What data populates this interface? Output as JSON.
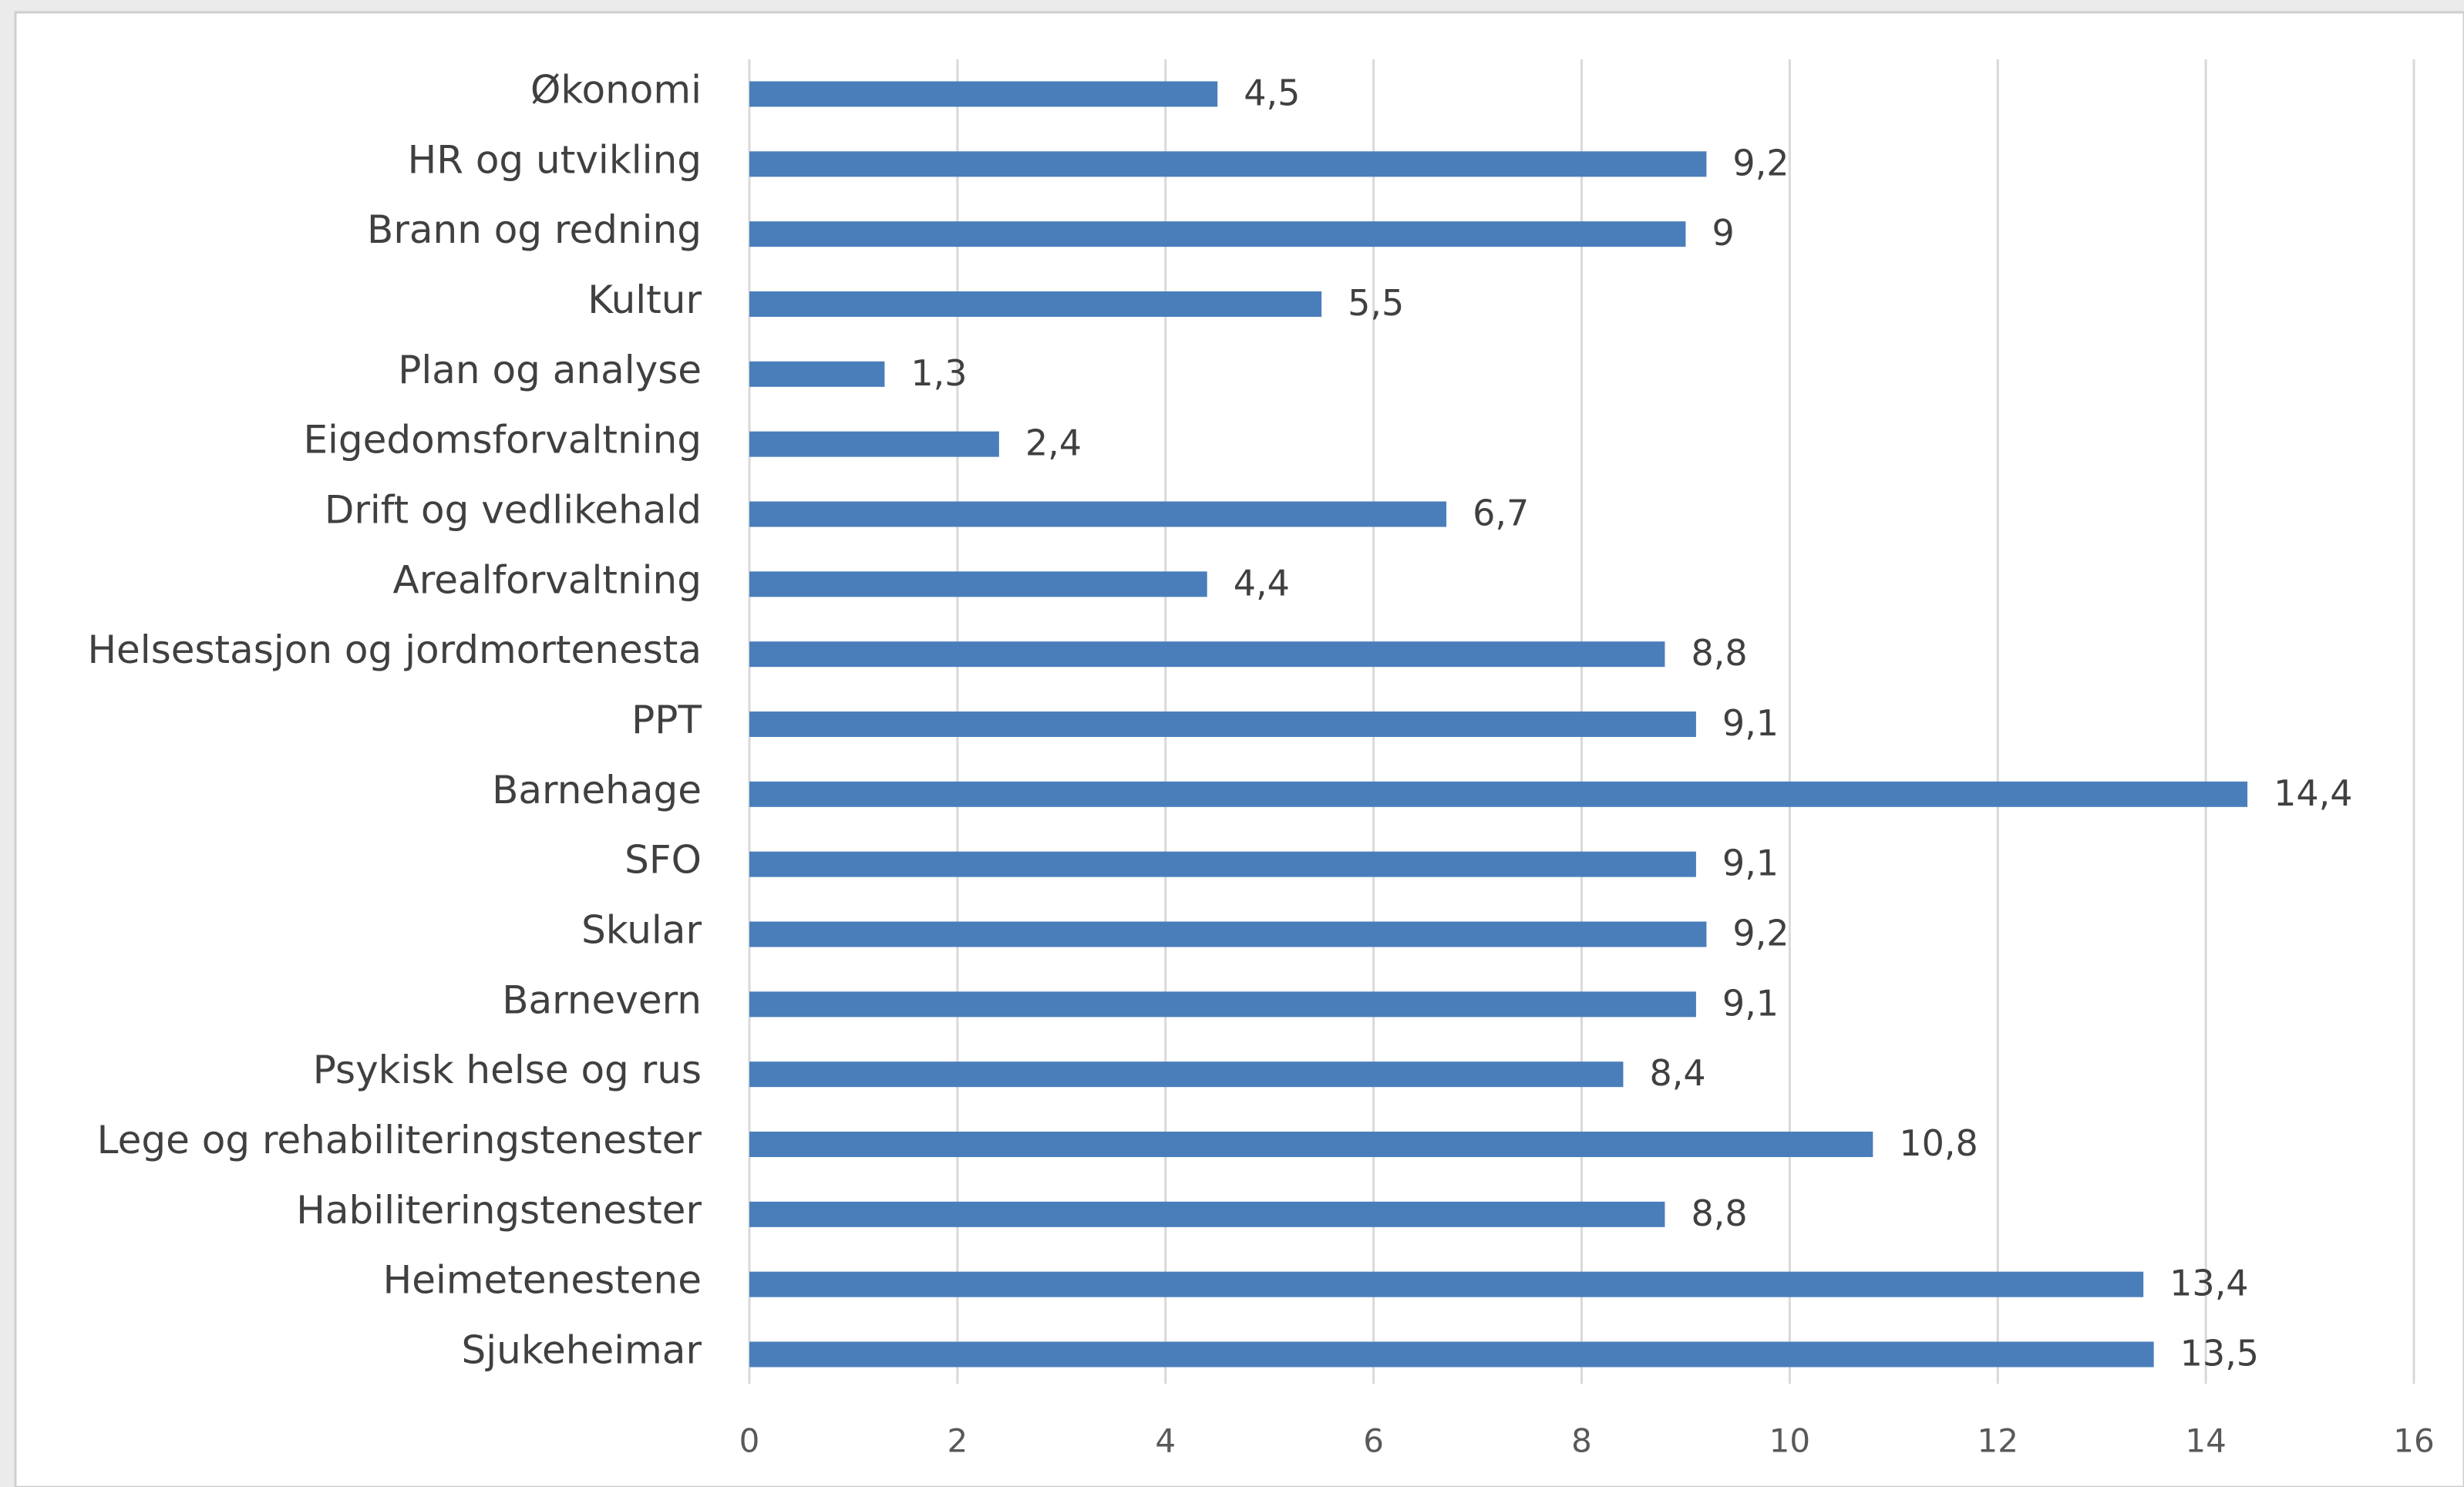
{
  "chart_data": {
    "type": "bar",
    "orientation": "horizontal",
    "categories": [
      "Økonomi",
      "HR og utvikling",
      "Brann og redning",
      "Kultur",
      "Plan og analyse",
      "Eigedomsforvaltning",
      "Drift og vedlikehald",
      "Arealforvaltning",
      "Helsestasjon og jordmortenesta",
      "PPT",
      "Barnehage",
      "SFO",
      "Skular",
      "Barnevern",
      "Psykisk helse og rus",
      "Lege og rehabiliteringstenester",
      "Habiliteringstenester",
      "Heimetenestene",
      "Sjukeheimar"
    ],
    "values": [
      4.5,
      9.2,
      9,
      5.5,
      1.3,
      2.4,
      6.7,
      4.4,
      8.8,
      9.1,
      14.4,
      9.1,
      9.2,
      9.1,
      8.4,
      10.8,
      8.8,
      13.4,
      13.5
    ],
    "value_labels": [
      "4,5",
      "9,2",
      "9",
      "5,5",
      "1,3",
      "2,4",
      "6,7",
      "4,4",
      "8,8",
      "9,1",
      "14,4",
      "9,1",
      "9,2",
      "9,1",
      "8,4",
      "10,8",
      "8,8",
      "13,4",
      "13,5"
    ],
    "color": "#4a7ebb",
    "xlim": [
      0,
      16
    ],
    "xticks": [
      0,
      2,
      4,
      6,
      8,
      10,
      12,
      14,
      16
    ],
    "grid": true
  }
}
